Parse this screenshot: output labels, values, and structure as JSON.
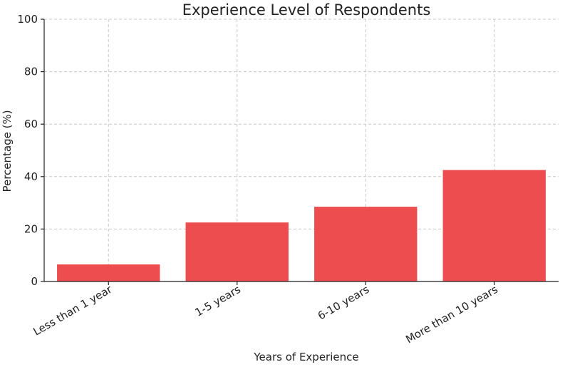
{
  "chart_data": {
    "type": "bar",
    "title": "Experience Level of Respondents",
    "xlabel": "Years of Experience",
    "ylabel": "Percentage (%)",
    "categories": [
      "Less than 1 year",
      "1-5 years",
      "6-10 years",
      "More than 10 years"
    ],
    "values": [
      6.5,
      22.5,
      28.5,
      42.5
    ],
    "ylim": [
      0,
      100
    ],
    "yticks": [
      "0",
      "20",
      "40",
      "60",
      "80",
      "100"
    ],
    "grid": true,
    "bar_color": "#ee4d4f"
  }
}
